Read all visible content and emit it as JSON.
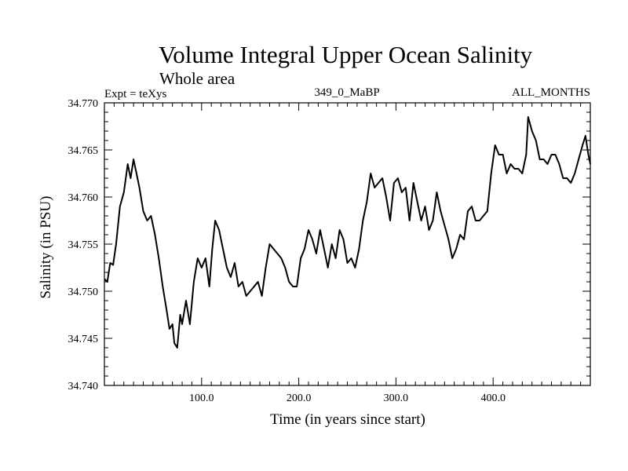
{
  "header": {
    "title": "Volume Integral Upper Ocean Salinity",
    "subtitle": "Whole area",
    "experiment": "Expt = teXys",
    "run_id": "349_0_MaBP",
    "months": "ALL_MONTHS"
  },
  "chart_data": {
    "type": "line",
    "title": "Volume Integral Upper Ocean Salinity",
    "subtitle": "Whole area",
    "xlabel": "Time (in years since start)",
    "ylabel": "Salinity (in PSU)",
    "xlim": [
      0,
      500
    ],
    "ylim": [
      34.74,
      34.77
    ],
    "grid": false,
    "x_ticks": [
      100,
      200,
      300,
      400
    ],
    "x_tick_labels": [
      "100.0",
      "200.0",
      "300.0",
      "400.0"
    ],
    "y_ticks": [
      34.74,
      34.745,
      34.75,
      34.755,
      34.76,
      34.765,
      34.77
    ],
    "y_tick_labels": [
      "34.740",
      "34.745",
      "34.750",
      "34.755",
      "34.760",
      "34.765",
      "34.770"
    ],
    "series": [
      {
        "color": "#000000",
        "x": [
          0,
          3,
          6,
          9,
          12,
          16,
          20,
          24,
          27,
          30,
          33,
          36,
          40,
          44,
          48,
          52,
          56,
          60,
          64,
          67,
          70,
          72,
          75,
          78,
          80,
          84,
          88,
          92,
          96,
          100,
          104,
          108,
          111,
          114,
          118,
          122,
          126,
          130,
          134,
          138,
          142,
          146,
          150,
          154,
          158,
          162,
          166,
          170,
          174,
          178,
          182,
          186,
          190,
          194,
          198,
          202,
          206,
          210,
          214,
          218,
          222,
          226,
          230,
          234,
          238,
          242,
          246,
          250,
          254,
          258,
          262,
          266,
          270,
          274,
          278,
          282,
          286,
          290,
          294,
          298,
          302,
          306,
          310,
          314,
          318,
          322,
          326,
          330,
          334,
          338,
          342,
          346,
          350,
          354,
          358,
          362,
          366,
          370,
          374,
          378,
          382,
          386,
          390,
          394,
          398,
          402,
          406,
          410,
          414,
          418,
          422,
          426,
          430,
          434,
          436,
          440,
          444,
          448,
          452,
          456,
          460,
          464,
          468,
          472,
          476,
          480,
          484,
          488,
          492,
          495,
          498,
          500
        ],
        "values": [
          34.7513,
          34.751,
          34.753,
          34.7528,
          34.755,
          34.759,
          34.7605,
          34.7635,
          34.762,
          34.764,
          34.7625,
          34.761,
          34.7585,
          34.7575,
          34.758,
          34.756,
          34.7535,
          34.7505,
          34.748,
          34.746,
          34.7465,
          34.7445,
          34.744,
          34.7475,
          34.7465,
          34.749,
          34.7465,
          34.751,
          34.7535,
          34.7525,
          34.7535,
          34.7505,
          34.7545,
          34.7575,
          34.7565,
          34.7545,
          34.7525,
          34.7515,
          34.753,
          34.7505,
          34.751,
          34.7495,
          34.75,
          34.7505,
          34.751,
          34.7495,
          34.7525,
          34.755,
          34.7545,
          34.754,
          34.7535,
          34.7525,
          34.751,
          34.7505,
          34.7505,
          34.7535,
          34.7545,
          34.7565,
          34.7555,
          34.754,
          34.7565,
          34.7545,
          34.7525,
          34.755,
          34.7535,
          34.7565,
          34.7555,
          34.753,
          34.7535,
          34.7525,
          34.7545,
          34.7575,
          34.7595,
          34.7625,
          34.761,
          34.7615,
          34.762,
          34.76,
          34.7575,
          34.7615,
          34.762,
          34.7605,
          34.761,
          34.7575,
          34.7615,
          34.7595,
          34.7575,
          34.759,
          34.7565,
          34.7575,
          34.7605,
          34.7585,
          34.757,
          34.7555,
          34.7535,
          34.7545,
          34.756,
          34.7555,
          34.7585,
          34.759,
          34.7575,
          34.7575,
          34.758,
          34.7585,
          34.7625,
          34.7655,
          34.7645,
          34.7645,
          34.7625,
          34.7635,
          34.763,
          34.763,
          34.7625,
          34.7645,
          34.7685,
          34.767,
          34.766,
          34.764,
          34.764,
          34.7635,
          34.7645,
          34.7645,
          34.7635,
          34.762,
          34.762,
          34.7615,
          34.7625,
          34.764,
          34.7655,
          34.7665,
          34.7645,
          34.7635
        ]
      }
    ]
  }
}
